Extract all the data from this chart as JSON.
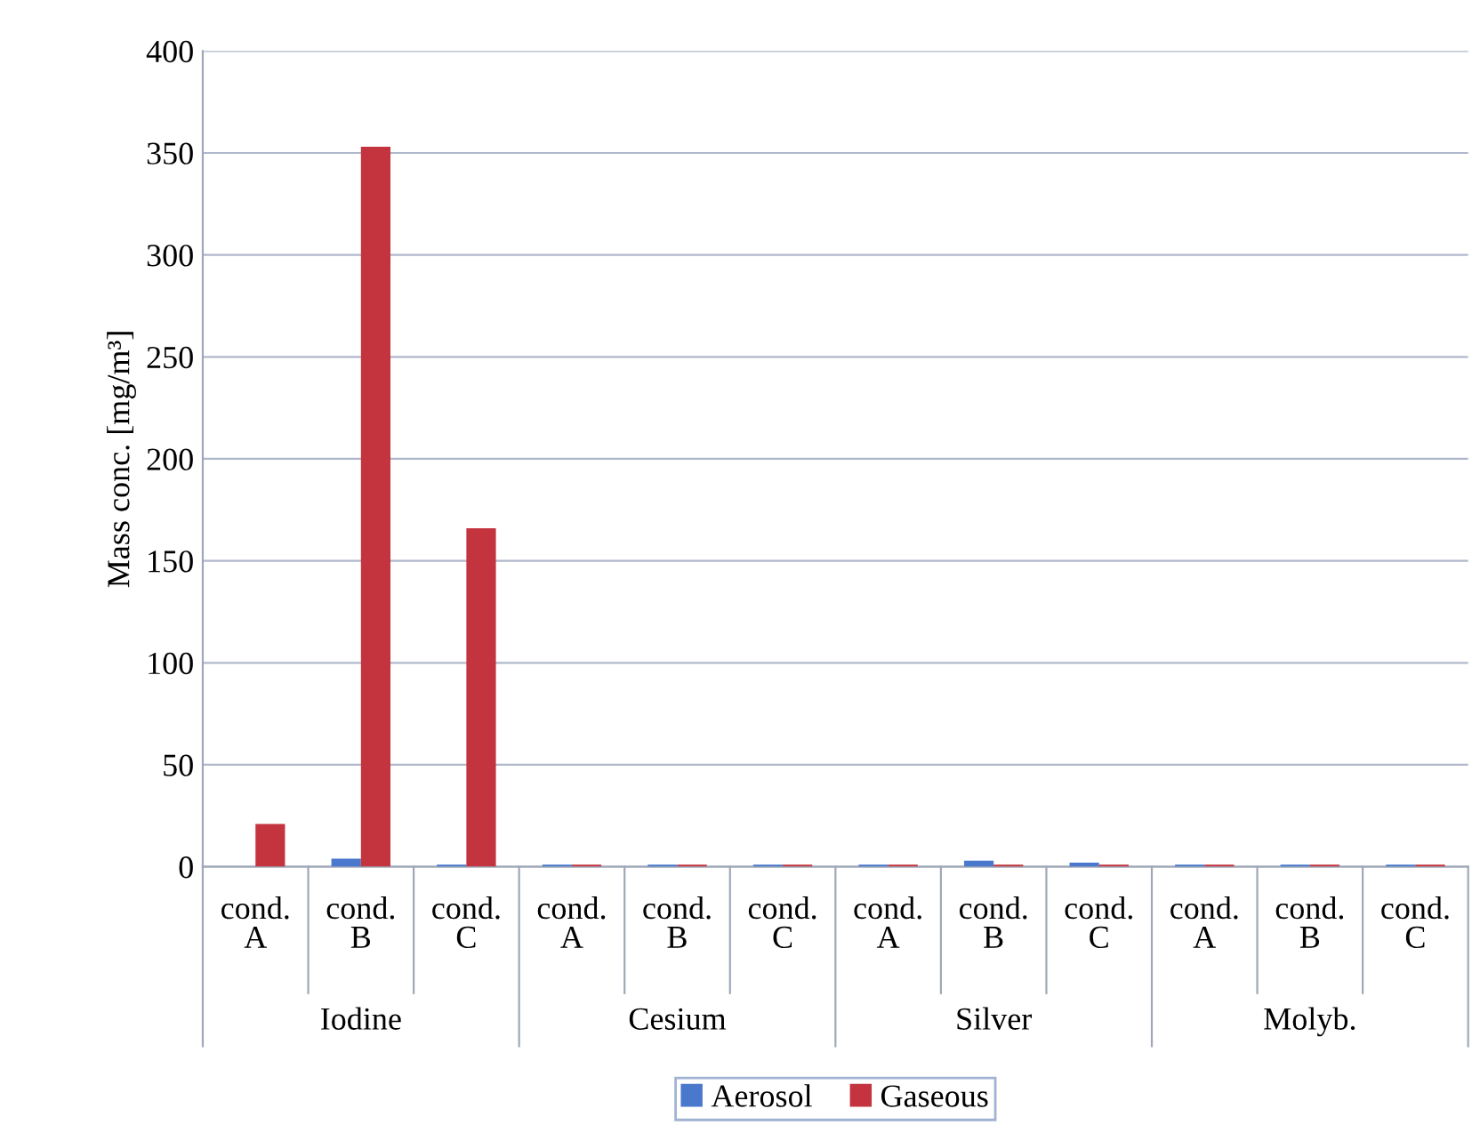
{
  "chart_data": {
    "type": "bar",
    "ylabel": "Mass conc. [mg/m³]",
    "categories": [
      "cond.\nA",
      "cond.\nB",
      "cond.\nC",
      "cond.\nA",
      "cond.\nB",
      "cond.\nC",
      "cond.\nA",
      "cond.\nB",
      "cond.\nC",
      "cond.\nA",
      "cond.\nB",
      "cond.\nC"
    ],
    "annotations": [
      "Iodine",
      "Cesium",
      "Silver",
      "Molyb."
    ],
    "series": [
      {
        "name": "Aerosol",
        "color": "#4a78cc",
        "values": [
          0,
          4,
          1,
          1,
          1,
          1,
          1,
          3,
          2,
          1,
          1,
          1
        ]
      },
      {
        "name": "Gaseous",
        "color": "#c3343f",
        "values": [
          21,
          353,
          166,
          1,
          1,
          1,
          1,
          1,
          1,
          1,
          1,
          1
        ]
      }
    ],
    "ylim": [
      0,
      400
    ],
    "yticks": [
      0,
      50,
      100,
      150,
      200,
      250,
      300,
      350,
      400
    ],
    "grid": "y",
    "legend": "bottom"
  }
}
